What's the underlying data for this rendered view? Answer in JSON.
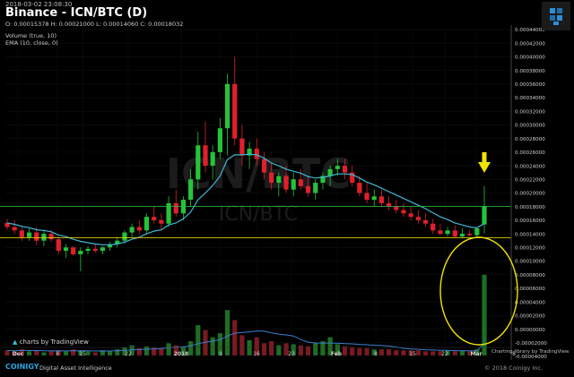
{
  "header": {
    "timestamp": "2018-03-02 23:08:30",
    "title": "Binance - ICN/BTC (D)",
    "ohlc": "O: 0.00015378 H: 0.00021000 L: 0.00014060 C: 0.00018032",
    "indicator_volume": "Volume (true, 10)",
    "indicator_ema": "EMA (10, close, 0)"
  },
  "watermark": {
    "pair": "ICN/BTC",
    "pair_sub": "ICN/BTC"
  },
  "footer": {
    "brand": "COINIGY",
    "tagline": "Digital Asset Intelligence",
    "copyright": "© 2018 Coinigy Inc.",
    "charting_by": "Charting library by TradingView"
  },
  "charts_by": "charts by TradingView",
  "colors": {
    "up": "#26c33a",
    "down": "#e0202c",
    "ema": "#3fb8d8",
    "annotation": "#f2e300",
    "bg": "#000000"
  },
  "chart_data": {
    "type": "candlestick",
    "title": "Binance - ICN/BTC (D)",
    "y_axis_price": {
      "ticks": [
        "0.00044000",
        "0.00042000",
        "0.00040000",
        "0.00038000",
        "0.00036000",
        "0.00034000",
        "0.00032000",
        "0.00030000",
        "0.00028000",
        "0.00026000",
        "0.00024000",
        "0.00022000",
        "0.00020000",
        "0.00018000",
        "0.00016000",
        "0.00014000",
        "0.00012000",
        "0.00010000",
        "0.00008000",
        "0.00006000",
        "0.00004000",
        "0.00002000",
        "0.00000000",
        "-0.00002000",
        "-0.00004000"
      ],
      "range": [
        -4e-05,
        0.00044
      ]
    },
    "x_axis": {
      "ticks": [
        "Dec",
        "8",
        "15",
        "22",
        "2018",
        "9",
        "16",
        "23",
        "Feb",
        "8",
        "15",
        "22",
        "Mar",
        "8"
      ]
    },
    "price_lines": [
      {
        "label": "0.00018032",
        "value": 0.00018032,
        "color": "#26c33a"
      },
      {
        "label": "0.00013429",
        "value": 0.00013429,
        "color": "#f2e300"
      }
    ],
    "candles": [
      [
        1.56,
        1.62,
        1.46,
        1.5
      ],
      [
        1.5,
        1.6,
        1.4,
        1.45
      ],
      [
        1.45,
        1.52,
        1.3,
        1.35
      ],
      [
        1.35,
        1.48,
        1.3,
        1.42
      ],
      [
        1.42,
        1.5,
        1.24,
        1.3
      ],
      [
        1.3,
        1.45,
        1.22,
        1.4
      ],
      [
        1.4,
        1.46,
        1.28,
        1.32
      ],
      [
        1.32,
        1.36,
        1.1,
        1.15
      ],
      [
        1.15,
        1.25,
        1.05,
        1.2
      ],
      [
        1.2,
        1.22,
        1.08,
        1.1
      ],
      [
        1.1,
        1.2,
        0.85,
        1.15
      ],
      [
        1.15,
        1.22,
        1.1,
        1.18
      ],
      [
        1.18,
        1.25,
        1.12,
        1.15
      ],
      [
        1.15,
        1.22,
        1.1,
        1.2
      ],
      [
        1.2,
        1.28,
        1.15,
        1.25
      ],
      [
        1.25,
        1.35,
        1.2,
        1.3
      ],
      [
        1.3,
        1.45,
        1.25,
        1.42
      ],
      [
        1.42,
        1.55,
        1.35,
        1.5
      ],
      [
        1.5,
        1.6,
        1.4,
        1.45
      ],
      [
        1.45,
        1.7,
        1.4,
        1.65
      ],
      [
        1.65,
        1.8,
        1.55,
        1.6
      ],
      [
        1.6,
        1.7,
        1.45,
        1.55
      ],
      [
        1.55,
        1.95,
        1.5,
        1.85
      ],
      [
        1.85,
        2.05,
        1.65,
        1.7
      ],
      [
        1.7,
        1.95,
        1.6,
        1.9
      ],
      [
        1.9,
        2.35,
        1.8,
        2.2
      ],
      [
        2.2,
        2.9,
        2.05,
        2.7
      ],
      [
        2.7,
        3.05,
        2.3,
        2.4
      ],
      [
        2.4,
        2.7,
        2.2,
        2.6
      ],
      [
        2.6,
        3.1,
        2.5,
        2.95
      ],
      [
        2.95,
        3.75,
        2.55,
        3.6
      ],
      [
        3.6,
        4.0,
        2.7,
        2.8
      ],
      [
        2.8,
        3.0,
        2.4,
        2.55
      ],
      [
        2.55,
        2.75,
        2.35,
        2.65
      ],
      [
        2.65,
        2.8,
        2.4,
        2.5
      ],
      [
        2.5,
        2.6,
        2.2,
        2.3
      ],
      [
        2.3,
        2.45,
        2.05,
        2.15
      ],
      [
        2.15,
        2.3,
        1.95,
        2.25
      ],
      [
        2.25,
        2.4,
        2.0,
        2.05
      ],
      [
        2.05,
        2.3,
        1.95,
        2.2
      ],
      [
        2.2,
        2.35,
        2.05,
        2.1
      ],
      [
        2.1,
        2.25,
        1.95,
        2.0
      ],
      [
        2.0,
        2.2,
        1.9,
        2.15
      ],
      [
        2.15,
        2.3,
        2.05,
        2.25
      ],
      [
        2.25,
        2.4,
        2.1,
        2.35
      ],
      [
        2.35,
        2.5,
        2.25,
        2.4
      ],
      [
        2.4,
        2.5,
        2.2,
        2.3
      ],
      [
        2.3,
        2.4,
        2.1,
        2.15
      ],
      [
        2.15,
        2.25,
        1.95,
        2.0
      ],
      [
        2.0,
        2.15,
        1.85,
        1.9
      ],
      [
        1.9,
        2.05,
        1.8,
        1.95
      ],
      [
        1.95,
        2.05,
        1.8,
        1.85
      ],
      [
        1.85,
        1.95,
        1.75,
        1.8
      ],
      [
        1.8,
        1.9,
        1.7,
        1.75
      ],
      [
        1.75,
        1.85,
        1.65,
        1.7
      ],
      [
        1.7,
        1.8,
        1.6,
        1.65
      ],
      [
        1.65,
        1.75,
        1.55,
        1.6
      ],
      [
        1.6,
        1.7,
        1.5,
        1.55
      ],
      [
        1.55,
        1.62,
        1.4,
        1.45
      ],
      [
        1.45,
        1.55,
        1.38,
        1.4
      ],
      [
        1.4,
        1.5,
        1.36,
        1.45
      ],
      [
        1.45,
        1.52,
        1.34,
        1.36
      ],
      [
        1.36,
        1.48,
        1.34,
        1.4
      ],
      [
        1.4,
        1.45,
        1.36,
        1.38
      ],
      [
        1.38,
        1.5,
        1.34,
        1.48
      ],
      [
        1.538,
        2.1,
        1.406,
        1.803
      ]
    ],
    "candle_units": "x 0.0001 BTC (open, high, low, close)",
    "ema": [
      1.56,
      1.54,
      1.51,
      1.49,
      1.46,
      1.45,
      1.43,
      1.38,
      1.36,
      1.32,
      1.29,
      1.27,
      1.25,
      1.24,
      1.24,
      1.25,
      1.28,
      1.32,
      1.35,
      1.4,
      1.44,
      1.46,
      1.53,
      1.56,
      1.62,
      1.72,
      1.9,
      2.0,
      2.11,
      2.25,
      2.49,
      2.56,
      2.56,
      2.57,
      2.56,
      2.51,
      2.44,
      2.4,
      2.35,
      2.32,
      2.29,
      2.24,
      2.22,
      2.23,
      2.25,
      2.28,
      2.28,
      2.27,
      2.22,
      2.16,
      2.12,
      2.07,
      2.02,
      1.97,
      1.92,
      1.87,
      1.82,
      1.77,
      1.71,
      1.65,
      1.61,
      1.56,
      1.53,
      1.5,
      1.49,
      1.55
    ],
    "volume": [
      5,
      4,
      6,
      4,
      5,
      3,
      4,
      5,
      4,
      6,
      5,
      4,
      3,
      5,
      4,
      6,
      8,
      10,
      7,
      9,
      8,
      7,
      12,
      10,
      9,
      14,
      30,
      25,
      18,
      22,
      45,
      35,
      20,
      15,
      18,
      12,
      14,
      10,
      12,
      11,
      10,
      9,
      12,
      14,
      18,
      11,
      9,
      8,
      7,
      7,
      6,
      6,
      6,
      5,
      5,
      5,
      5,
      4,
      4,
      4,
      5,
      4,
      5,
      4,
      6,
      80
    ],
    "annotations": [
      "down-arrow-above-last-candle",
      "circle-around-last-volume-bar"
    ]
  }
}
